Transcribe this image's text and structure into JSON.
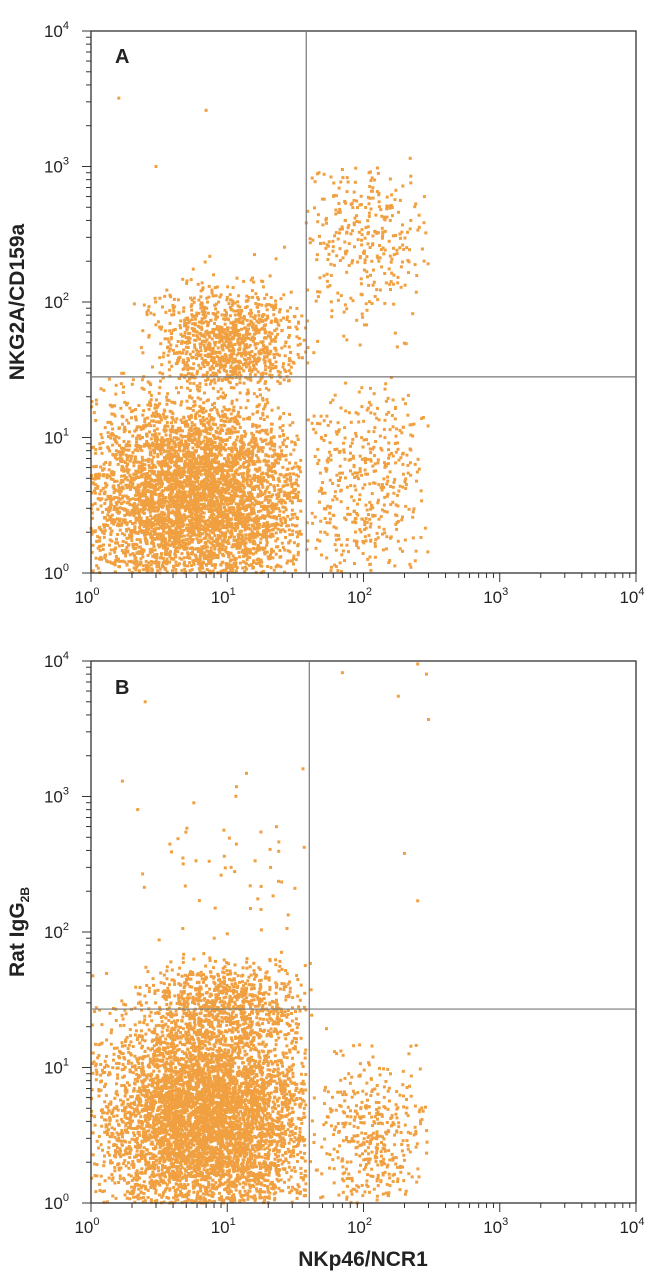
{
  "chart_data": [
    {
      "type": "scatter",
      "panel_label": "A",
      "xlabel": "",
      "ylabel": "NKG2A/CD159a",
      "xscale": "log",
      "yscale": "log",
      "xlim": [
        1,
        10000
      ],
      "ylim": [
        1,
        10000
      ],
      "x_ticks": [
        1,
        10,
        100,
        1000,
        10000
      ],
      "y_ticks": [
        1,
        10,
        100,
        1000,
        10000
      ],
      "tick_base": "10",
      "tick_exponents": [
        "0",
        "1",
        "2",
        "3",
        "4"
      ],
      "gate": {
        "x": 38,
        "y": 28
      },
      "color": "#f0a040",
      "populations": [
        {
          "cx": 6,
          "cy": 3.5,
          "sdx": 0.42,
          "sdy": 0.38,
          "n": 5200,
          "xmin": 1,
          "xmax": 35,
          "ymin": 1,
          "ymax": 30
        },
        {
          "cx": 10,
          "cy": 50,
          "sdx": 0.28,
          "sdy": 0.2,
          "n": 1100,
          "xmin": 2,
          "xmax": 40,
          "ymin": 25,
          "ymax": 1000
        },
        {
          "cx": 100,
          "cy": 280,
          "sdx": 0.25,
          "sdy": 0.3,
          "n": 350,
          "xmin": 38,
          "xmax": 300,
          "ymin": 28,
          "ymax": 1000
        },
        {
          "cx": 100,
          "cy": 5,
          "sdx": 0.25,
          "sdy": 0.35,
          "n": 480,
          "xmin": 38,
          "xmax": 300,
          "ymin": 1,
          "ymax": 28
        }
      ],
      "outliers": [
        [
          1.6,
          3200
        ],
        [
          7,
          2600
        ],
        [
          220,
          1150
        ],
        [
          70,
          950
        ],
        [
          3,
          1000
        ],
        [
          110,
          900
        ],
        [
          280,
          600
        ]
      ]
    },
    {
      "type": "scatter",
      "panel_label": "B",
      "xlabel": "NKp46/NCR1",
      "ylabel": "Rat IgG",
      "ylabel_subscript": "2B",
      "xscale": "log",
      "yscale": "log",
      "xlim": [
        1,
        10000
      ],
      "ylim": [
        1,
        10000
      ],
      "x_ticks": [
        1,
        10,
        100,
        1000,
        10000
      ],
      "y_ticks": [
        1,
        10,
        100,
        1000,
        10000
      ],
      "tick_base": "10",
      "tick_exponents": [
        "0",
        "1",
        "2",
        "3",
        "4"
      ],
      "gate": {
        "x": 40,
        "y": 27
      },
      "color": "#f0a040",
      "populations": [
        {
          "cx": 7,
          "cy": 4,
          "sdx": 0.4,
          "sdy": 0.4,
          "n": 6000,
          "xmin": 1,
          "xmax": 38,
          "ymin": 1,
          "ymax": 60
        },
        {
          "cx": 9,
          "cy": 30,
          "sdx": 0.28,
          "sdy": 0.16,
          "n": 700,
          "xmin": 2,
          "xmax": 42,
          "ymin": 15,
          "ymax": 80
        },
        {
          "cx": 110,
          "cy": 3,
          "sdx": 0.22,
          "sdy": 0.3,
          "n": 450,
          "xmin": 40,
          "xmax": 300,
          "ymin": 1,
          "ymax": 27
        },
        {
          "cx": 10,
          "cy": 250,
          "sdx": 0.3,
          "sdy": 0.35,
          "n": 55,
          "xmin": 2,
          "xmax": 40,
          "ymin": 80,
          "ymax": 1600
        }
      ],
      "outliers": [
        [
          250,
          9500
        ],
        [
          290,
          8000
        ],
        [
          70,
          8200
        ],
        [
          2.5,
          5000
        ],
        [
          180,
          5500
        ],
        [
          300,
          3700
        ],
        [
          36,
          1600
        ],
        [
          1.7,
          1300
        ],
        [
          200,
          380
        ],
        [
          250,
          170
        ],
        [
          2.2,
          800
        ]
      ]
    }
  ]
}
